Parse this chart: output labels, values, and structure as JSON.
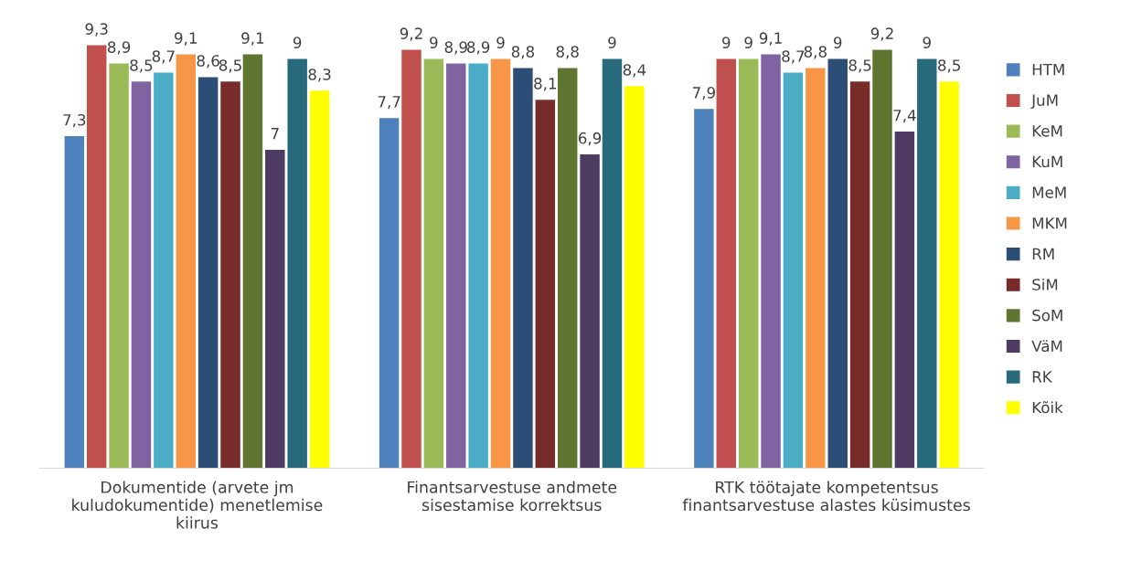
{
  "chart_data": {
    "type": "bar",
    "categories": [
      "Dokumentide (arvete jm\nkuludokumentide) menetlemise\nkiirus",
      "Finantsarvestuse andmete\nsisestamise korrektsus",
      "RTK töötajate kompetentsus\nfinantsarvestuse alastes küsimustes"
    ],
    "series": [
      {
        "name": "HTM",
        "color": "#4f81bd",
        "values": [
          7.3,
          7.7,
          7.9
        ],
        "value_labels": [
          "7,3",
          "7,7",
          "7,9"
        ]
      },
      {
        "name": "JuM",
        "color": "#c0504d",
        "values": [
          9.3,
          9.2,
          9
        ],
        "value_labels": [
          "9,3",
          "9,2",
          "9"
        ]
      },
      {
        "name": "KeM",
        "color": "#9bbb59",
        "values": [
          8.9,
          9,
          9
        ],
        "value_labels": [
          "8,9",
          "9",
          "9"
        ]
      },
      {
        "name": "KuM",
        "color": "#8064a2",
        "values": [
          8.5,
          8.9,
          9.1
        ],
        "value_labels": [
          "8,5",
          "8,9",
          "9,1"
        ]
      },
      {
        "name": "MeM",
        "color": "#4bacc6",
        "values": [
          8.7,
          8.9,
          8.7
        ],
        "value_labels": [
          "8,7",
          "8,9",
          "8,7"
        ]
      },
      {
        "name": "MKM",
        "color": "#f79646",
        "values": [
          9.1,
          9,
          8.8
        ],
        "value_labels": [
          "9,1",
          "9",
          "8,8"
        ]
      },
      {
        "name": "RM",
        "color": "#2c4d75",
        "values": [
          8.6,
          8.8,
          9
        ],
        "value_labels": [
          "8,6",
          "8,8",
          "9"
        ]
      },
      {
        "name": "SiM",
        "color": "#772c2a",
        "values": [
          8.5,
          8.1,
          8.5
        ],
        "value_labels": [
          "8,5",
          "8,1",
          "8,5"
        ]
      },
      {
        "name": "SoM",
        "color": "#5f7530",
        "values": [
          9.1,
          8.8,
          9.2
        ],
        "value_labels": [
          "9,1",
          "8,8",
          "9,2"
        ]
      },
      {
        "name": "VäM",
        "color": "#4d3b62",
        "values": [
          7,
          6.9,
          7.4
        ],
        "value_labels": [
          "7",
          "6,9",
          "7,4"
        ]
      },
      {
        "name": "RK",
        "color": "#276a7c",
        "values": [
          9,
          9,
          9
        ],
        "value_labels": [
          "9",
          "9",
          "9"
        ]
      },
      {
        "name": "Kõik",
        "color": "#ffff00",
        "values": [
          8.3,
          8.4,
          8.5
        ],
        "value_labels": [
          "8,3",
          "8,4",
          "8,5"
        ]
      }
    ],
    "tick_labels": "x",
    "grid": false,
    "legend": "right"
  }
}
